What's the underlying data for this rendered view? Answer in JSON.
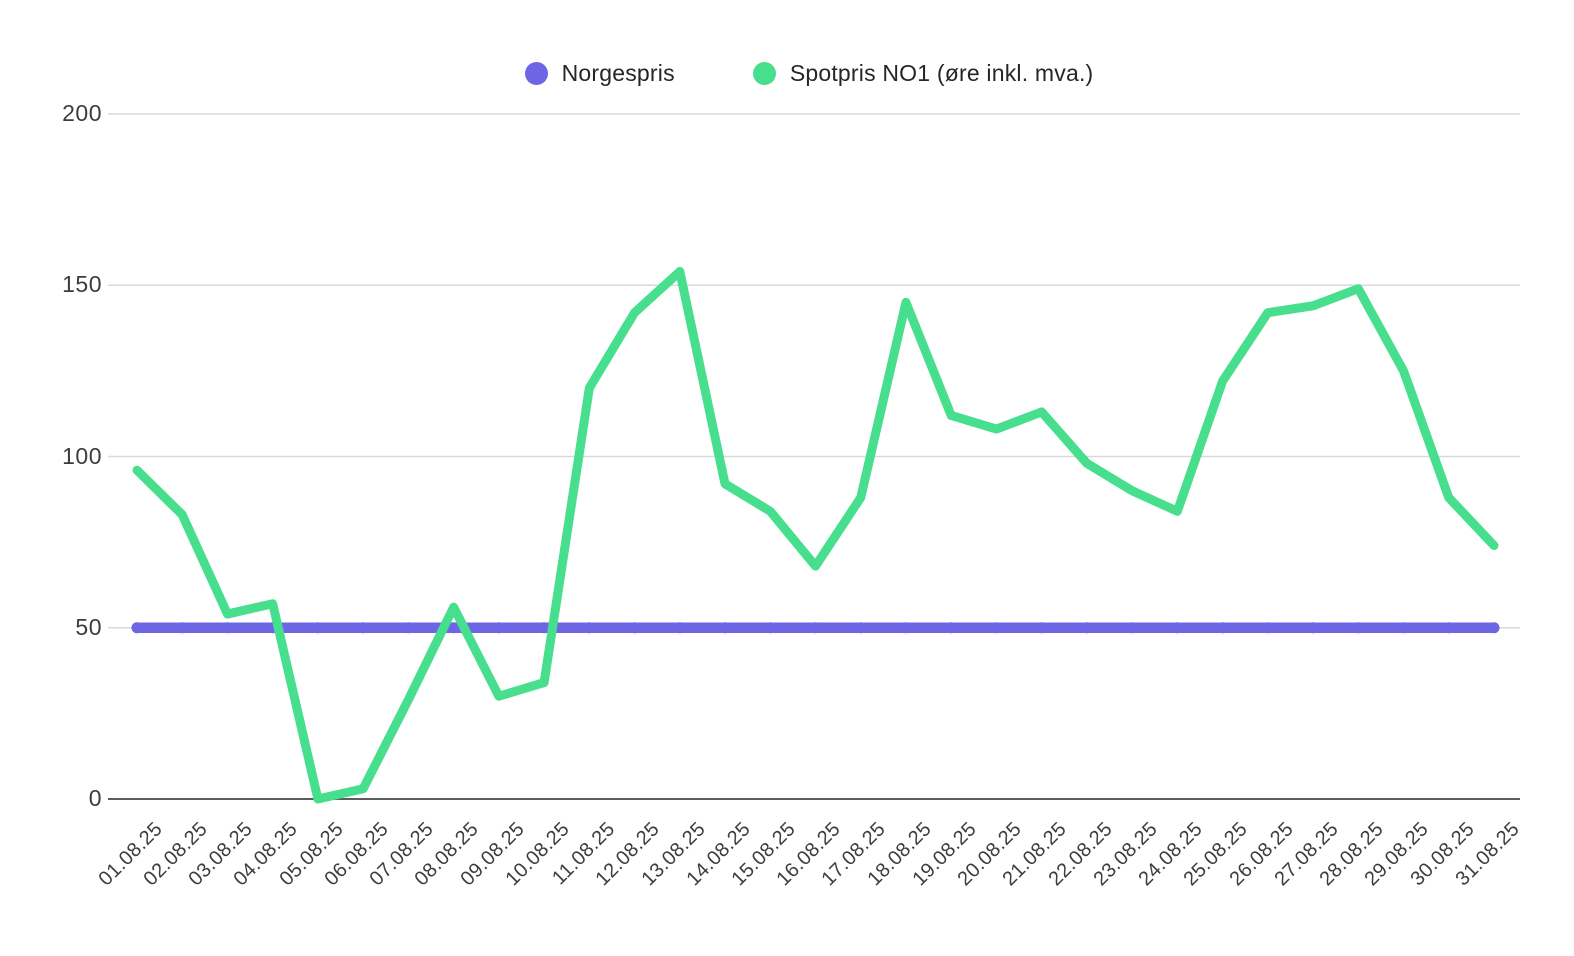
{
  "legend": {
    "items": [
      {
        "label": "Norgespris",
        "color": "#6c66e4"
      },
      {
        "label": "Spotpris NO1 (øre inkl. mva.)",
        "color": "#47df8d"
      }
    ]
  },
  "chart_data": {
    "type": "line",
    "title": "",
    "xlabel": "",
    "ylabel": "",
    "categories": [
      "01.08.25",
      "02.08.25",
      "03.08.25",
      "04.08.25",
      "05.08.25",
      "06.08.25",
      "07.08.25",
      "08.08.25",
      "09.08.25",
      "10.08.25",
      "11.08.25",
      "12.08.25",
      "13.08.25",
      "14.08.25",
      "15.08.25",
      "16.08.25",
      "17.08.25",
      "18.08.25",
      "19.08.25",
      "20.08.25",
      "21.08.25",
      "22.08.25",
      "23.08.25",
      "24.08.25",
      "25.08.25",
      "26.08.25",
      "27.08.25",
      "28.08.25",
      "29.08.25",
      "30.08.25",
      "31.08.25"
    ],
    "series": [
      {
        "name": "Norgespris",
        "color": "#6c66e4",
        "marker_color": "#5852d2",
        "values": [
          50,
          50,
          50,
          50,
          50,
          50,
          50,
          50,
          50,
          50,
          50,
          50,
          50,
          50,
          50,
          50,
          50,
          50,
          50,
          50,
          50,
          50,
          50,
          50,
          50,
          50,
          50,
          50,
          50,
          50,
          50
        ]
      },
      {
        "name": "Spotpris NO1 (øre inkl. mva.)",
        "color": "#47df8d",
        "values": [
          96,
          83,
          54,
          57,
          0,
          3,
          29,
          56,
          30,
          34,
          120,
          142,
          154,
          92,
          84,
          68,
          88,
          145,
          112,
          108,
          113,
          98,
          90,
          84,
          122,
          142,
          144,
          149,
          125,
          88,
          74
        ]
      }
    ],
    "ylim": [
      0,
      200
    ],
    "yticks": [
      0,
      50,
      100,
      150,
      200
    ],
    "grid": true,
    "legend_position": "top"
  }
}
